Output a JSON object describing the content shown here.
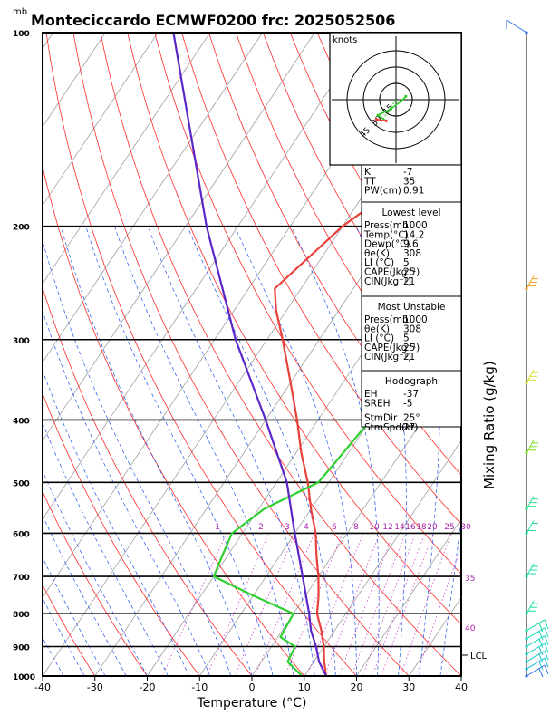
{
  "chart_data": {
    "type": "line",
    "title": "Monteciccardo ECMWF0200 frc: 2025052506",
    "pressure_unit": "mb",
    "xlabel": "Temperature (°C)",
    "right_label": "Mixing Ratio (g/kg)",
    "xlim": [
      -40,
      40
    ],
    "ylim": [
      1000,
      100
    ],
    "y_scale": "log",
    "x_ticks": [
      -40,
      -30,
      -20,
      -10,
      0,
      10,
      20,
      30,
      40
    ],
    "pressure_levels": [
      1000,
      900,
      800,
      700,
      600,
      500,
      400,
      300,
      200,
      100
    ],
    "mixing_ratio_labels": [
      "1",
      "2",
      "3",
      "4",
      "6",
      "8",
      "10",
      "12",
      "14",
      "16",
      "18",
      "20",
      "25",
      "30"
    ],
    "dry_adiabat_labels": [
      "30",
      "35",
      "40"
    ],
    "series": [
      {
        "role": "temperature",
        "color": "#e8403a",
        "points": [
          [
            1000,
            14.2
          ],
          [
            950,
            12
          ],
          [
            900,
            10
          ],
          [
            850,
            7.5
          ],
          [
            800,
            4.5
          ],
          [
            750,
            2.5
          ],
          [
            700,
            0
          ],
          [
            650,
            -3
          ],
          [
            600,
            -6
          ],
          [
            550,
            -10
          ],
          [
            500,
            -14
          ],
          [
            450,
            -19
          ],
          [
            400,
            -24
          ],
          [
            350,
            -30
          ],
          [
            300,
            -37
          ],
          [
            270,
            -42
          ],
          [
            250,
            -45
          ],
          [
            200,
            -40
          ],
          [
            150,
            -29
          ],
          [
            120,
            -21
          ],
          [
            100,
            -15
          ]
        ]
      },
      {
        "role": "dewpoint",
        "color": "#2fcf2f",
        "points": [
          [
            1000,
            9.6
          ],
          [
            950,
            5
          ],
          [
            900,
            4.5
          ],
          [
            870,
            0.5
          ],
          [
            800,
            0
          ],
          [
            750,
            -10
          ],
          [
            700,
            -20
          ],
          [
            650,
            -21
          ],
          [
            600,
            -22
          ],
          [
            550,
            -19
          ],
          [
            500,
            -12
          ],
          [
            450,
            -11
          ],
          [
            400,
            -10
          ],
          [
            350,
            -12
          ],
          [
            300,
            -14
          ],
          [
            270,
            -15.5
          ],
          [
            250,
            -16
          ],
          [
            200,
            -15
          ],
          [
            150,
            -14
          ],
          [
            100,
            -13
          ]
        ]
      },
      {
        "role": "parcel",
        "color": "#5a26c8",
        "points": [
          [
            1000,
            14.2
          ],
          [
            950,
            11
          ],
          [
            900,
            8.5
          ],
          [
            850,
            5.5
          ],
          [
            800,
            3
          ],
          [
            700,
            -3
          ],
          [
            600,
            -10
          ],
          [
            500,
            -18
          ],
          [
            400,
            -30
          ],
          [
            300,
            -46
          ],
          [
            200,
            -66
          ],
          [
            100,
            -97
          ]
        ]
      }
    ],
    "lcl_label": "LCL",
    "lcl_pressure": 920,
    "hodograph": {
      "units": "knots",
      "ring_labels": [
        "15",
        "30",
        "45"
      ],
      "points": [
        [
          0.6,
          0.2
        ],
        [
          0.3,
          -0.1
        ],
        [
          -0.3,
          -0.55
        ],
        [
          -1.1,
          -0.95
        ],
        [
          -0.6,
          -1.3
        ],
        [
          -1.2,
          -1.2
        ]
      ],
      "storm_motion": [
        -1.0,
        -1.5
      ]
    },
    "indices": {
      "top": [
        [
          "K",
          "-7"
        ],
        [
          "TT",
          "35"
        ],
        [
          "PW(cm)",
          "0.91"
        ]
      ],
      "lowest_level": {
        "header": "Lowest level",
        "rows": [
          [
            "Press(mb)",
            "1000"
          ],
          [
            "Temp(°C)",
            "14.2"
          ],
          [
            "Dewp(°C)",
            "9.6"
          ],
          [
            "θe(K)",
            "308"
          ],
          [
            "LI (°C)",
            "5"
          ],
          [
            "CAPE(Jkg⁻¹)",
            "25"
          ],
          [
            "CIN(Jkg⁻¹)",
            "21"
          ]
        ]
      },
      "most_unstable": {
        "header": "Most Unstable",
        "rows": [
          [
            "Press(mb)",
            "1000"
          ],
          [
            "θe(K)",
            "308"
          ],
          [
            "LI (°C)",
            "5"
          ],
          [
            "CAPE(Jkg⁻¹)",
            "25"
          ],
          [
            "CIN(Jkg⁻¹)",
            "21"
          ]
        ]
      },
      "hodograph": {
        "header": "Hodograph",
        "rows": [
          [
            "EH",
            "-37"
          ],
          [
            "SREH",
            "-5"
          ],
          [
            "StmDir",
            "25°"
          ],
          [
            "StmSpd(kt)",
            "27"
          ]
        ]
      }
    },
    "wind_profile": [
      {
        "pressure": 1000,
        "color": "#2b6ef0"
      },
      {
        "pressure": 975,
        "color": "#19b9d8"
      },
      {
        "pressure": 950,
        "color": "#19c9d0"
      },
      {
        "pressure": 925,
        "color": "#19d0c8"
      },
      {
        "pressure": 900,
        "color": "#19d6c0"
      },
      {
        "pressure": 875,
        "color": "#19dcb8"
      },
      {
        "pressure": 850,
        "color": "#19e0b0"
      },
      {
        "pressure": 800,
        "color": "#19e0a8"
      },
      {
        "pressure": 700,
        "color": "#1ee0a8"
      },
      {
        "pressure": 600,
        "color": "#1ee09a"
      },
      {
        "pressure": 550,
        "color": "#2ee08a"
      },
      {
        "pressure": 450,
        "color": "#7ce020"
      },
      {
        "pressure": 350,
        "color": "#d8e020"
      },
      {
        "pressure": 250,
        "color": "#f0a020"
      },
      {
        "pressure": 100,
        "color": "#2b6ef0"
      }
    ]
  }
}
